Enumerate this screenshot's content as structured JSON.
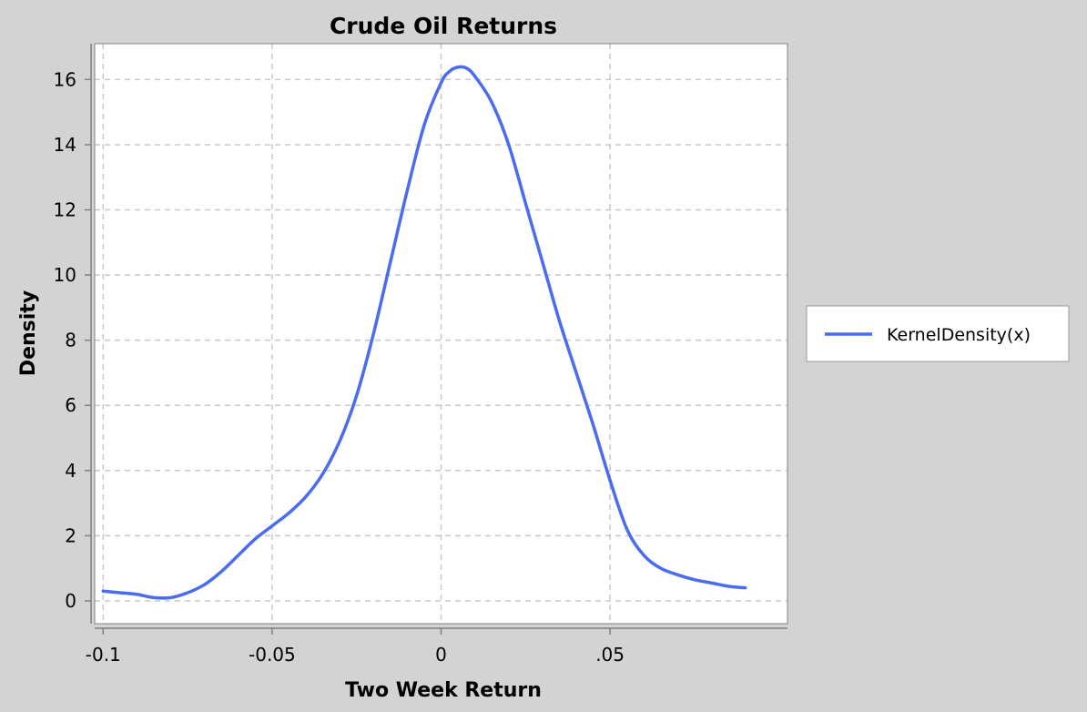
{
  "chart_data": {
    "type": "line",
    "title": "Crude Oil Returns",
    "xlabel": "Two Week Return",
    "ylabel": "Density",
    "xlim": [
      -0.1025,
      0.1025
    ],
    "ylim": [
      -0.7,
      17.1
    ],
    "x_ticks": [
      {
        "value": -0.1,
        "label": "-0.1"
      },
      {
        "value": -0.05,
        "label": "-0.05"
      },
      {
        "value": 0,
        "label": "0"
      },
      {
        "value": 0.05,
        "label": ".05"
      }
    ],
    "y_ticks": [
      {
        "value": 0,
        "label": "0"
      },
      {
        "value": 2,
        "label": "2"
      },
      {
        "value": 4,
        "label": "4"
      },
      {
        "value": 6,
        "label": "6"
      },
      {
        "value": 8,
        "label": "8"
      },
      {
        "value": 10,
        "label": "10"
      },
      {
        "value": 12,
        "label": "12"
      },
      {
        "value": 14,
        "label": "14"
      },
      {
        "value": 16,
        "label": "16"
      }
    ],
    "grid": true,
    "legend": {
      "placement": "right"
    },
    "series": [
      {
        "name": "KernelDensity(x)",
        "color": "#4a6cf0",
        "x": [
          -0.1,
          -0.095,
          -0.09,
          -0.085,
          -0.08,
          -0.075,
          -0.07,
          -0.065,
          -0.06,
          -0.055,
          -0.05,
          -0.045,
          -0.04,
          -0.035,
          -0.03,
          -0.025,
          -0.02,
          -0.015,
          -0.01,
          -0.005,
          0,
          0.0025,
          0.005,
          0.0075,
          0.01,
          0.015,
          0.02,
          0.025,
          0.03,
          0.035,
          0.04,
          0.045,
          0.05,
          0.055,
          0.06,
          0.065,
          0.07,
          0.075,
          0.08,
          0.085,
          0.09
        ],
        "y": [
          0.3,
          0.25,
          0.2,
          0.1,
          0.1,
          0.25,
          0.5,
          0.9,
          1.4,
          1.9,
          2.3,
          2.7,
          3.2,
          3.9,
          4.9,
          6.3,
          8.2,
          10.4,
          12.6,
          14.6,
          15.9,
          16.25,
          16.38,
          16.35,
          16.1,
          15.3,
          14.0,
          12.2,
          10.4,
          8.6,
          7.0,
          5.4,
          3.7,
          2.2,
          1.4,
          1.0,
          0.8,
          0.65,
          0.55,
          0.45,
          0.4
        ]
      }
    ]
  }
}
